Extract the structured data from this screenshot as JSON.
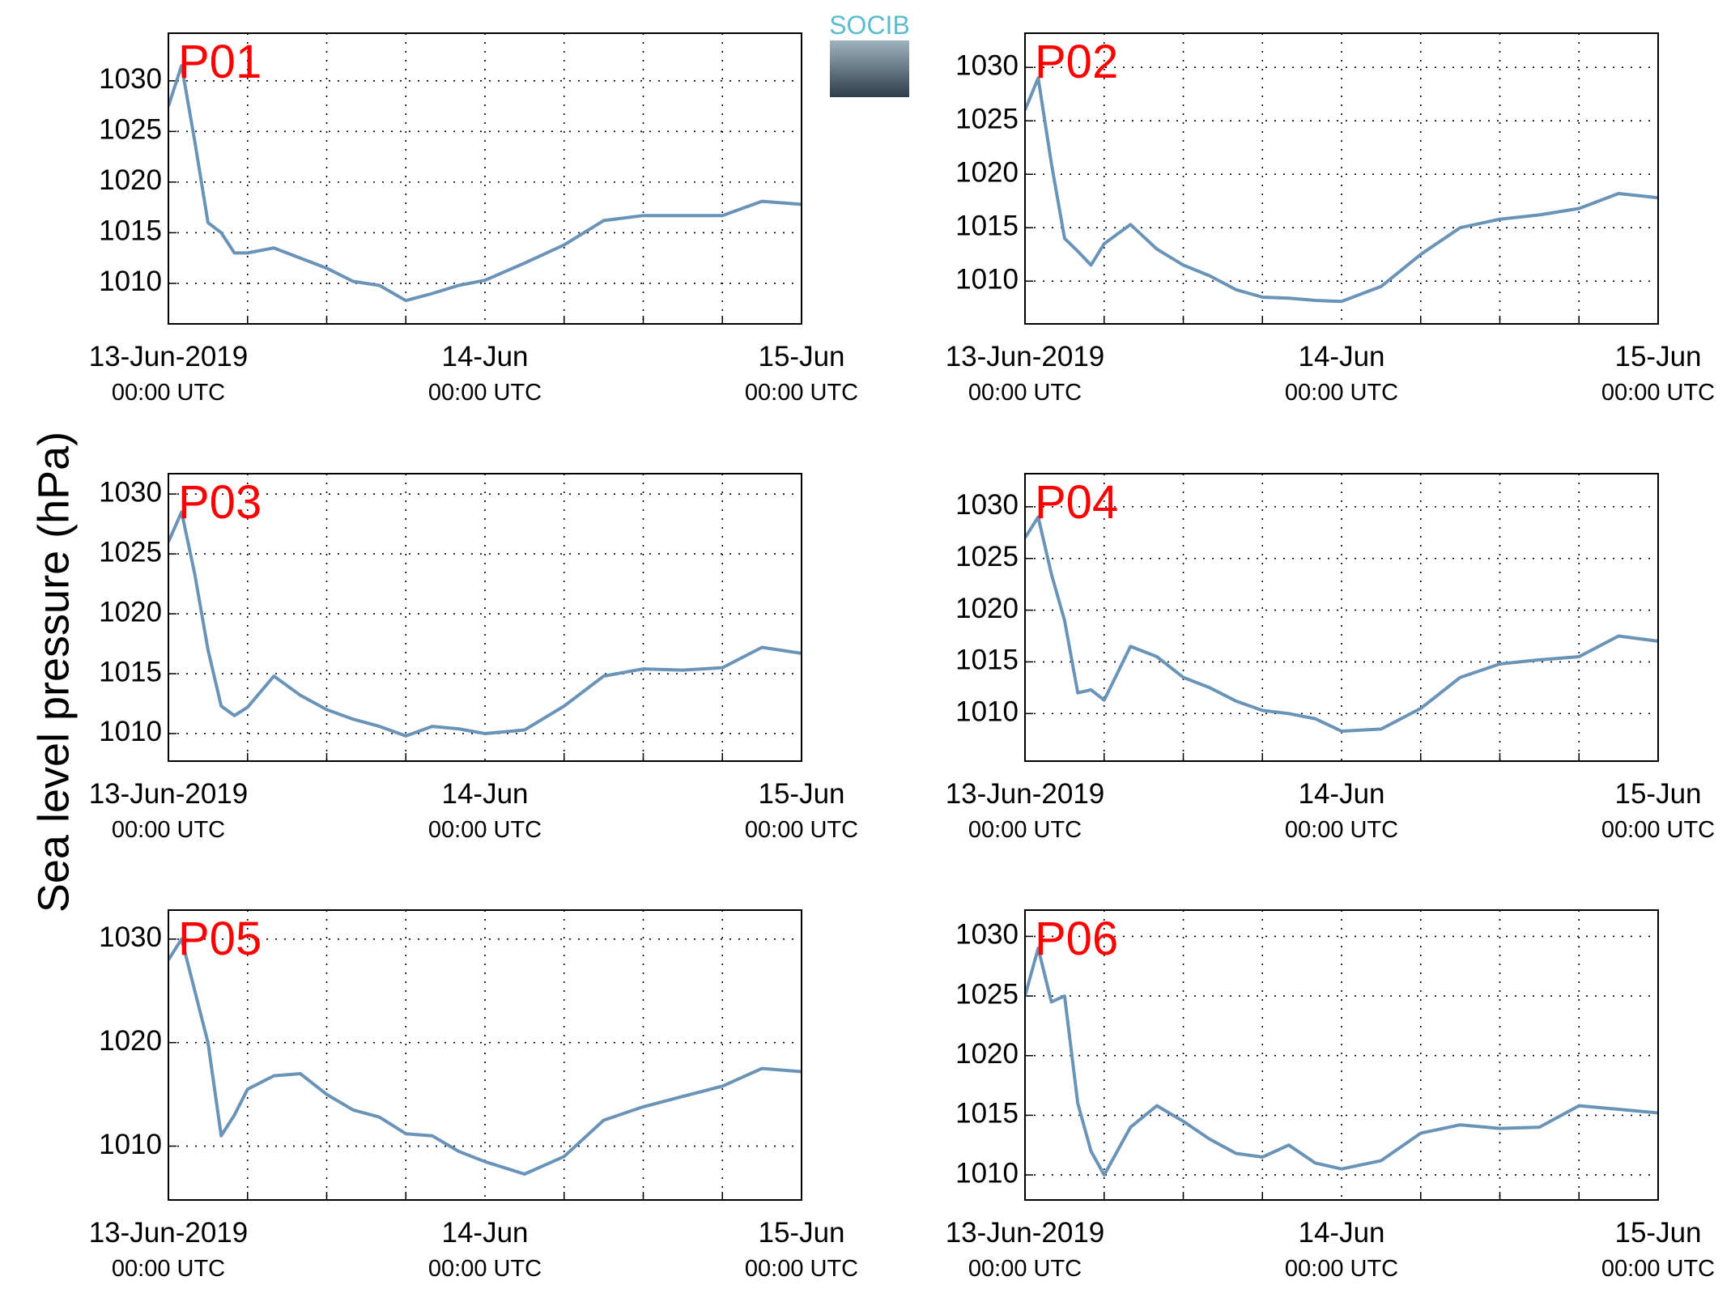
{
  "ylabel": "Sea level pressure (hPa)",
  "logo": "SOCIB",
  "chart_data": [
    {
      "type": "line",
      "title": "P01",
      "color": "#6a93b8",
      "x": [
        "2019-06-13T00:00",
        "2019-06-13T01:00",
        "2019-06-13T02:00",
        "2019-06-13T03:00",
        "2019-06-13T04:00",
        "2019-06-13T05:00",
        "2019-06-13T06:00",
        "2019-06-13T08:00",
        "2019-06-13T10:00",
        "2019-06-13T12:00",
        "2019-06-13T14:00",
        "2019-06-13T16:00",
        "2019-06-13T18:00",
        "2019-06-13T20:00",
        "2019-06-13T22:00",
        "2019-06-14T00:00",
        "2019-06-14T03:00",
        "2019-06-14T06:00",
        "2019-06-14T09:00",
        "2019-06-14T12:00",
        "2019-06-14T15:00",
        "2019-06-14T18:00",
        "2019-06-14T21:00",
        "2019-06-15T00:00"
      ],
      "values": [
        1027.5,
        1031.5,
        1024,
        1016,
        1015,
        1013,
        1013,
        1013.5,
        1012.5,
        1011.5,
        1010.2,
        1009.8,
        1008.3,
        1009,
        1009.8,
        1010.3,
        1012,
        1013.8,
        1016.2,
        1016.7,
        1016.7,
        1016.7,
        1018.1,
        1017.8
      ],
      "xlim": [
        "2019-06-13T00:00",
        "2019-06-15T00:00"
      ],
      "xticks": [
        {
          "value": "2019-06-13T00:00",
          "label": [
            "13-Jun-2019",
            "00:00 UTC"
          ]
        },
        {
          "value": "2019-06-14T00:00",
          "label": [
            "14-Jun",
            "00:00 UTC"
          ]
        },
        {
          "value": "2019-06-15T00:00",
          "label": [
            "15-Jun",
            "00:00 UTC"
          ]
        }
      ],
      "xminor": [
        "2019-06-13T06:00",
        "2019-06-13T12:00",
        "2019-06-13T18:00",
        "2019-06-14T06:00",
        "2019-06-14T12:00",
        "2019-06-14T18:00"
      ],
      "ylim": [
        1006,
        1034.7
      ],
      "yticks": [
        1010,
        1015,
        1020,
        1025,
        1030
      ],
      "grid": true
    },
    {
      "type": "line",
      "title": "P02",
      "color": "#6a93b8",
      "x": [
        "2019-06-13T00:00",
        "2019-06-13T01:00",
        "2019-06-13T02:00",
        "2019-06-13T03:00",
        "2019-06-13T04:00",
        "2019-06-13T05:00",
        "2019-06-13T06:00",
        "2019-06-13T08:00",
        "2019-06-13T10:00",
        "2019-06-13T12:00",
        "2019-06-13T14:00",
        "2019-06-13T16:00",
        "2019-06-13T18:00",
        "2019-06-13T20:00",
        "2019-06-13T22:00",
        "2019-06-14T00:00",
        "2019-06-14T03:00",
        "2019-06-14T06:00",
        "2019-06-14T09:00",
        "2019-06-14T12:00",
        "2019-06-14T15:00",
        "2019-06-14T18:00",
        "2019-06-14T21:00",
        "2019-06-15T00:00"
      ],
      "values": [
        1026,
        1029,
        1021,
        1014,
        1012.8,
        1011.5,
        1013.5,
        1015.3,
        1013,
        1011.5,
        1010.5,
        1009.2,
        1008.5,
        1008.4,
        1008.2,
        1008.1,
        1009.5,
        1012.5,
        1015,
        1015.8,
        1016.2,
        1016.8,
        1018.2,
        1017.8
      ],
      "xlim": [
        "2019-06-13T00:00",
        "2019-06-15T00:00"
      ],
      "xticks": [
        {
          "value": "2019-06-13T00:00",
          "label": [
            "13-Jun-2019",
            "00:00 UTC"
          ]
        },
        {
          "value": "2019-06-14T00:00",
          "label": [
            "14-Jun",
            "00:00 UTC"
          ]
        },
        {
          "value": "2019-06-15T00:00",
          "label": [
            "15-Jun",
            "00:00 UTC"
          ]
        }
      ],
      "xminor": [
        "2019-06-13T06:00",
        "2019-06-13T12:00",
        "2019-06-13T18:00",
        "2019-06-14T06:00",
        "2019-06-14T12:00",
        "2019-06-14T18:00"
      ],
      "ylim": [
        1006,
        1033.2
      ],
      "yticks": [
        1010,
        1015,
        1020,
        1025,
        1030
      ],
      "grid": true
    },
    {
      "type": "line",
      "title": "P03",
      "color": "#6a93b8",
      "x": [
        "2019-06-13T00:00",
        "2019-06-13T01:00",
        "2019-06-13T02:00",
        "2019-06-13T03:00",
        "2019-06-13T04:00",
        "2019-06-13T05:00",
        "2019-06-13T06:00",
        "2019-06-13T08:00",
        "2019-06-13T10:00",
        "2019-06-13T12:00",
        "2019-06-13T14:00",
        "2019-06-13T16:00",
        "2019-06-13T18:00",
        "2019-06-13T20:00",
        "2019-06-13T22:00",
        "2019-06-14T00:00",
        "2019-06-14T03:00",
        "2019-06-14T06:00",
        "2019-06-14T09:00",
        "2019-06-14T12:00",
        "2019-06-14T15:00",
        "2019-06-14T18:00",
        "2019-06-14T21:00",
        "2019-06-15T00:00"
      ],
      "values": [
        1026,
        1028.5,
        1023.3,
        1017,
        1012.3,
        1011.5,
        1012.2,
        1014.8,
        1013.2,
        1012,
        1011.2,
        1010.6,
        1009.8,
        1010.6,
        1010.4,
        1010,
        1010.3,
        1012.3,
        1014.8,
        1015.4,
        1015.3,
        1015.5,
        1017.2,
        1016.7
      ],
      "xlim": [
        "2019-06-13T00:00",
        "2019-06-15T00:00"
      ],
      "xticks": [
        {
          "value": "2019-06-13T00:00",
          "label": [
            "13-Jun-2019",
            "00:00 UTC"
          ]
        },
        {
          "value": "2019-06-14T00:00",
          "label": [
            "14-Jun",
            "00:00 UTC"
          ]
        },
        {
          "value": "2019-06-15T00:00",
          "label": [
            "15-Jun",
            "00:00 UTC"
          ]
        }
      ],
      "xminor": [
        "2019-06-13T06:00",
        "2019-06-13T12:00",
        "2019-06-13T18:00",
        "2019-06-14T06:00",
        "2019-06-14T12:00",
        "2019-06-14T18:00"
      ],
      "ylim": [
        1007.7,
        1031.7
      ],
      "yticks": [
        1010,
        1015,
        1020,
        1025,
        1030
      ],
      "grid": true
    },
    {
      "type": "line",
      "title": "P04",
      "color": "#6a93b8",
      "x": [
        "2019-06-13T00:00",
        "2019-06-13T01:00",
        "2019-06-13T02:00",
        "2019-06-13T03:00",
        "2019-06-13T04:00",
        "2019-06-13T05:00",
        "2019-06-13T06:00",
        "2019-06-13T08:00",
        "2019-06-13T10:00",
        "2019-06-13T12:00",
        "2019-06-13T14:00",
        "2019-06-13T16:00",
        "2019-06-13T18:00",
        "2019-06-13T20:00",
        "2019-06-13T22:00",
        "2019-06-14T00:00",
        "2019-06-14T03:00",
        "2019-06-14T06:00",
        "2019-06-14T09:00",
        "2019-06-14T12:00",
        "2019-06-14T15:00",
        "2019-06-14T18:00",
        "2019-06-14T21:00",
        "2019-06-15T00:00"
      ],
      "values": [
        1027,
        1029,
        1023.5,
        1019,
        1012,
        1012.3,
        1011.3,
        1016.5,
        1015.5,
        1013.5,
        1012.5,
        1011.2,
        1010.3,
        1010,
        1009.5,
        1008.3,
        1008.5,
        1010.5,
        1013.5,
        1014.8,
        1015.2,
        1015.5,
        1017.5,
        1017
      ],
      "xlim": [
        "2019-06-13T00:00",
        "2019-06-15T00:00"
      ],
      "xticks": [
        {
          "value": "2019-06-13T00:00",
          "label": [
            "13-Jun-2019",
            "00:00 UTC"
          ]
        },
        {
          "value": "2019-06-14T00:00",
          "label": [
            "14-Jun",
            "00:00 UTC"
          ]
        },
        {
          "value": "2019-06-15T00:00",
          "label": [
            "15-Jun",
            "00:00 UTC"
          ]
        }
      ],
      "xminor": [
        "2019-06-13T06:00",
        "2019-06-13T12:00",
        "2019-06-13T18:00",
        "2019-06-14T06:00",
        "2019-06-14T12:00",
        "2019-06-14T18:00"
      ],
      "ylim": [
        1005.4,
        1033.2
      ],
      "yticks": [
        1010,
        1015,
        1020,
        1025,
        1030
      ],
      "grid": true
    },
    {
      "type": "line",
      "title": "P05",
      "color": "#6a93b8",
      "x": [
        "2019-06-13T00:00",
        "2019-06-13T01:00",
        "2019-06-13T02:00",
        "2019-06-13T03:00",
        "2019-06-13T04:00",
        "2019-06-13T05:00",
        "2019-06-13T06:00",
        "2019-06-13T08:00",
        "2019-06-13T10:00",
        "2019-06-13T12:00",
        "2019-06-13T14:00",
        "2019-06-13T16:00",
        "2019-06-13T18:00",
        "2019-06-13T20:00",
        "2019-06-13T22:00",
        "2019-06-14T00:00",
        "2019-06-14T03:00",
        "2019-06-14T06:00",
        "2019-06-14T09:00",
        "2019-06-14T12:00",
        "2019-06-14T15:00",
        "2019-06-14T18:00",
        "2019-06-14T21:00",
        "2019-06-15T00:00"
      ],
      "values": [
        1028,
        1030,
        1025,
        1020,
        1011,
        1013,
        1015.5,
        1016.8,
        1017,
        1015,
        1013.5,
        1012.8,
        1011.2,
        1011,
        1009.5,
        1008.5,
        1007.3,
        1009,
        1012.5,
        1013.8,
        1014.8,
        1015.8,
        1017.5,
        1017.2
      ],
      "xlim": [
        "2019-06-13T00:00",
        "2019-06-15T00:00"
      ],
      "xticks": [
        {
          "value": "2019-06-13T00:00",
          "label": [
            "13-Jun-2019",
            "00:00 UTC"
          ]
        },
        {
          "value": "2019-06-14T00:00",
          "label": [
            "14-Jun",
            "00:00 UTC"
          ]
        },
        {
          "value": "2019-06-15T00:00",
          "label": [
            "15-Jun",
            "00:00 UTC"
          ]
        }
      ],
      "xminor": [
        "2019-06-13T06:00",
        "2019-06-13T12:00",
        "2019-06-13T18:00",
        "2019-06-14T06:00",
        "2019-06-14T12:00",
        "2019-06-14T18:00"
      ],
      "ylim": [
        1004.8,
        1032.8
      ],
      "yticks": [
        1010,
        1020,
        1030
      ],
      "grid": true
    },
    {
      "type": "line",
      "title": "P06",
      "color": "#6a93b8",
      "x": [
        "2019-06-13T00:00",
        "2019-06-13T01:00",
        "2019-06-13T02:00",
        "2019-06-13T03:00",
        "2019-06-13T04:00",
        "2019-06-13T05:00",
        "2019-06-13T06:00",
        "2019-06-13T08:00",
        "2019-06-13T10:00",
        "2019-06-13T12:00",
        "2019-06-13T14:00",
        "2019-06-13T16:00",
        "2019-06-13T18:00",
        "2019-06-13T20:00",
        "2019-06-13T22:00",
        "2019-06-14T00:00",
        "2019-06-14T03:00",
        "2019-06-14T06:00",
        "2019-06-14T09:00",
        "2019-06-14T12:00",
        "2019-06-14T15:00",
        "2019-06-14T18:00",
        "2019-06-14T21:00",
        "2019-06-15T00:00"
      ],
      "values": [
        1025,
        1029,
        1024.5,
        1025,
        1016,
        1012,
        1010,
        1014,
        1015.8,
        1014.5,
        1013,
        1011.8,
        1011.5,
        1012.5,
        1011,
        1010.5,
        1011.2,
        1013.5,
        1014.2,
        1013.9,
        1014,
        1015.8,
        1015.5,
        1015.2
      ],
      "xlim": [
        "2019-06-13T00:00",
        "2019-06-15T00:00"
      ],
      "xticks": [
        {
          "value": "2019-06-13T00:00",
          "label": [
            "13-Jun-2019",
            "00:00 UTC"
          ]
        },
        {
          "value": "2019-06-14T00:00",
          "label": [
            "14-Jun",
            "00:00 UTC"
          ]
        },
        {
          "value": "2019-06-15T00:00",
          "label": [
            "15-Jun",
            "00:00 UTC"
          ]
        }
      ],
      "xminor": [
        "2019-06-13T06:00",
        "2019-06-13T12:00",
        "2019-06-13T18:00",
        "2019-06-14T06:00",
        "2019-06-14T12:00",
        "2019-06-14T18:00"
      ],
      "ylim": [
        1007.9,
        1032.2
      ],
      "yticks": [
        1010,
        1015,
        1020,
        1025,
        1030
      ],
      "grid": true
    }
  ]
}
